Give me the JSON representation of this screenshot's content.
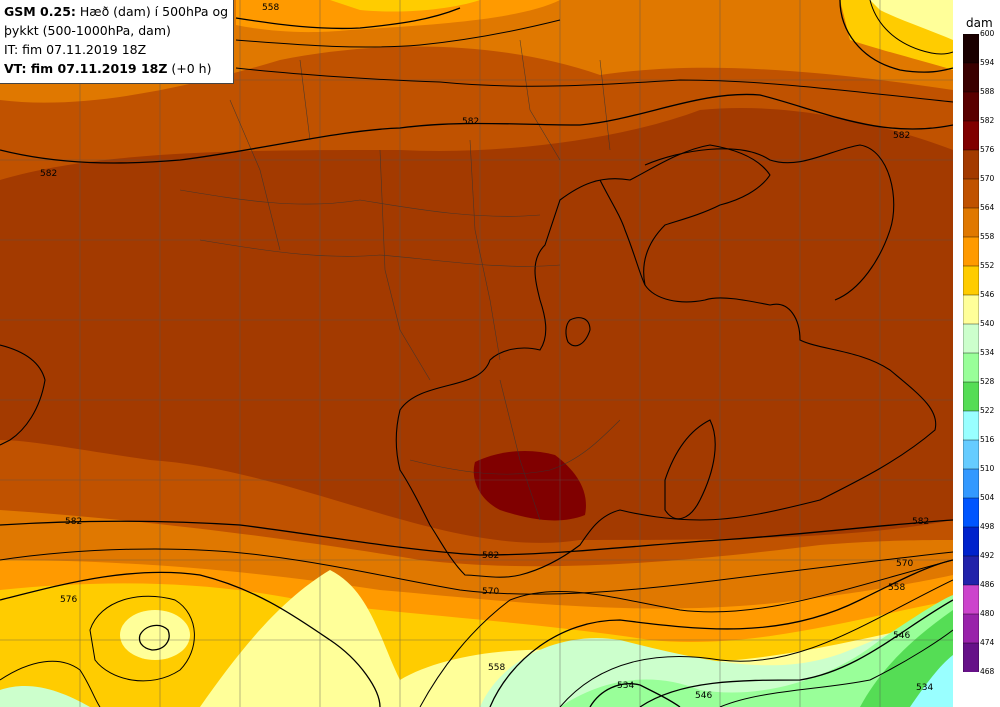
{
  "header": {
    "model": "GSM 0.25:",
    "title_line1": "Hæð (dam) í 500hPa og",
    "title_line2": "þykkt (500-1000hPa, dam)",
    "init_time": "IT: fim 07.11.2019 18Z",
    "valid_prefix": "VT: fim 07.11.2019 18Z",
    "valid_suffix": "(+0 h)"
  },
  "legend": {
    "unit": "dam",
    "levels": [
      {
        "value": "600",
        "color": "#1a0000"
      },
      {
        "value": "594",
        "color": "#3a0000"
      },
      {
        "value": "588",
        "color": "#5a0000"
      },
      {
        "value": "582",
        "color": "#800000"
      },
      {
        "value": "576",
        "color": "#a33a00"
      },
      {
        "value": "570",
        "color": "#c05200"
      },
      {
        "value": "564",
        "color": "#e07800"
      },
      {
        "value": "558",
        "color": "#ff9a00"
      },
      {
        "value": "552",
        "color": "#ffcc00"
      },
      {
        "value": "546",
        "color": "#ffff99"
      },
      {
        "value": "540",
        "color": "#ccffcc"
      },
      {
        "value": "534",
        "color": "#99ff99"
      },
      {
        "value": "528",
        "color": "#55dd55"
      },
      {
        "value": "522",
        "color": "#99ffff"
      },
      {
        "value": "516",
        "color": "#66ccff"
      },
      {
        "value": "510",
        "color": "#3399ff"
      },
      {
        "value": "504",
        "color": "#0055ff"
      },
      {
        "value": "498",
        "color": "#0022cc"
      },
      {
        "value": "492",
        "color": "#2222aa"
      },
      {
        "value": "486",
        "color": "#cc44cc"
      },
      {
        "value": "480",
        "color": "#9922aa"
      },
      {
        "value": "474",
        "color": "#661188"
      },
      {
        "value": "468",
        "color": "#440066"
      }
    ]
  },
  "contour_labels": [
    "582",
    "582",
    "582",
    "582",
    "582",
    "582",
    "576",
    "570",
    "570",
    "558",
    "558",
    "546",
    "546",
    "534",
    "534",
    "558"
  ]
}
